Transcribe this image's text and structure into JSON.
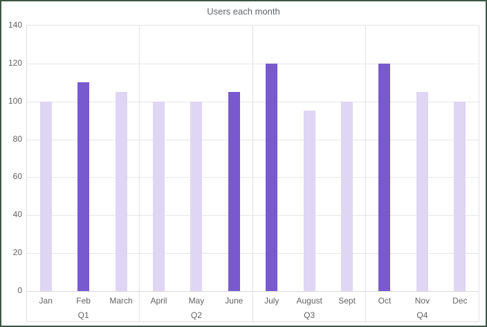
{
  "window": {
    "border_color": "#3A5743",
    "background": "#FFFFFF"
  },
  "chart_data": {
    "type": "bar",
    "title": "Users each month",
    "categories": [
      "Jan",
      "Feb",
      "March",
      "April",
      "May",
      "June",
      "July",
      "August",
      "Sept",
      "Oct",
      "Nov",
      "Dec"
    ],
    "values": [
      100,
      110,
      105,
      100,
      100,
      105,
      120,
      95,
      100,
      120,
      105,
      100
    ],
    "group_labels": [
      "Q1",
      "Q2",
      "Q3",
      "Q4"
    ],
    "months_per_group": 3,
    "highlight_indices": [
      1,
      5,
      6,
      9
    ],
    "xlabel": "",
    "ylabel": "",
    "ylim": [
      0,
      140
    ],
    "yticks": [
      0,
      20,
      40,
      60,
      80,
      100,
      120,
      140
    ],
    "grid": true,
    "legend": "none",
    "colors": {
      "bar_default": "#DED6F3",
      "bar_highlight": "#7959CE",
      "gridline": "#E6E6E6",
      "axis_text": "#616161",
      "title_text": "#5F6368",
      "frame": "#E0E0E0"
    }
  }
}
